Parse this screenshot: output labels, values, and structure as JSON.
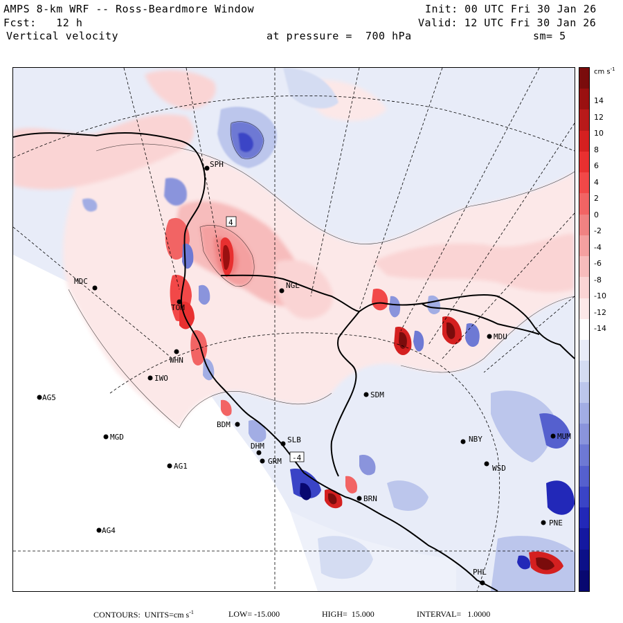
{
  "header": {
    "model": "AMPS 8-km WRF -- Ross-Beardmore Window",
    "forecast": "Fcst:   12 h",
    "field": "Vertical velocity",
    "init": "Init: 00 UTC Fri 30 Jan 26",
    "valid": "Valid: 12 UTC Fri 30 Jan 26",
    "pressure": "at pressure =  700 hPa",
    "smoothing": "sm= 5"
  },
  "colorbar": {
    "units": "cm s",
    "units_exp": "-1",
    "ticks": [
      "14",
      "12",
      "10",
      "8",
      "6",
      "4",
      "2",
      "0",
      "-2",
      "-4",
      "-6",
      "-8",
      "-10",
      "-12",
      "-14"
    ],
    "colors": [
      "#7a0c0c",
      "#9a1010",
      "#b81a1a",
      "#d42020",
      "#e83030",
      "#f24848",
      "#f26464",
      "#f08282",
      "#f4a0a0",
      "#f7bcbc",
      "#fad4d4",
      "#fce8e8",
      "#ffffff",
      "#e8ecf8",
      "#d4dcf2",
      "#bcc6ec",
      "#a2ade4",
      "#8a94dc",
      "#6e79d4",
      "#5560ce",
      "#3a44c6",
      "#2228b8",
      "#1418a0",
      "#0c1088",
      "#080870"
    ]
  },
  "stations": [
    {
      "label": "SPH",
      "id": "sph"
    },
    {
      "label": "MDC",
      "id": "mdc"
    },
    {
      "label": "NGL",
      "id": "ngl"
    },
    {
      "label": "TOM",
      "id": "tom"
    },
    {
      "label": "WHN",
      "id": "whn"
    },
    {
      "label": "IWO",
      "id": "iwo"
    },
    {
      "label": "AG5",
      "id": "ag5"
    },
    {
      "label": "MGD",
      "id": "mgd"
    },
    {
      "label": "AG1",
      "id": "ag1"
    },
    {
      "label": "AG4",
      "id": "ag4"
    },
    {
      "label": "BDM",
      "id": "bdm"
    },
    {
      "label": "SDM",
      "id": "sdm"
    },
    {
      "label": "NBY",
      "id": "nby"
    },
    {
      "label": "WSD",
      "id": "wsd"
    },
    {
      "label": "DHM",
      "id": "dhm"
    },
    {
      "label": "GRM",
      "id": "grm"
    },
    {
      "label": "SLB",
      "id": "slb"
    },
    {
      "label": "BRN",
      "id": "brn"
    },
    {
      "label": "MDU",
      "id": "mdu"
    },
    {
      "label": "MUM",
      "id": "mum"
    },
    {
      "label": "PNE",
      "id": "pne"
    },
    {
      "label": "PHL",
      "id": "phl"
    }
  ],
  "contour_labels": [
    "4",
    "-4"
  ],
  "footer": {
    "contours": "CONTOURS:  UNITS=cm s",
    "units_exp": "-1",
    "low": "LOW= -15.000",
    "high": "HIGH=  15.000",
    "interval": "INTERVAL=   1.0000"
  }
}
